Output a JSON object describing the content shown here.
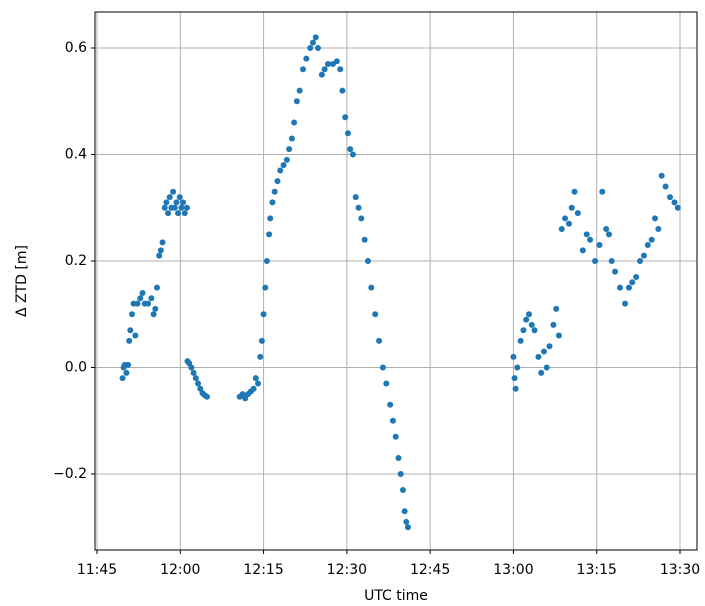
{
  "chart_data": {
    "type": "scatter",
    "xlabel": "UTC time",
    "ylabel": "Δ ZTD [m]",
    "xlim": [
      704.64,
      813.06
    ],
    "ylim": [
      -0.3427,
      0.6676
    ],
    "xticks": [
      {
        "value": 705,
        "label": "11:45"
      },
      {
        "value": 720,
        "label": "12:00"
      },
      {
        "value": 735,
        "label": "12:15"
      },
      {
        "value": 750,
        "label": "12:30"
      },
      {
        "value": 765,
        "label": "12:45"
      },
      {
        "value": 780,
        "label": "13:00"
      },
      {
        "value": 795,
        "label": "13:15"
      },
      {
        "value": 810,
        "label": "13:30"
      }
    ],
    "yticks": [
      {
        "value": -0.2,
        "label": "−0.2"
      },
      {
        "value": 0,
        "label": "0.0"
      },
      0.2,
      0.4,
      0.6
    ],
    "grid": true,
    "series": [
      {
        "color": "#1f77b4",
        "x": [
          709.6,
          709.8,
          710,
          710.3,
          710.6,
          710.8,
          711,
          711.3,
          711.6,
          711.9,
          712.3,
          712.8,
          713.2,
          713.6,
          714.2,
          714.8,
          715.2,
          715.5,
          715.8,
          716.2,
          716.5,
          716.8,
          717.2,
          717.5,
          717.8,
          718.1,
          718.4,
          718.7,
          719,
          719.3,
          719.6,
          719.9,
          720.2,
          720.5,
          720.8,
          721.2,
          721.3,
          721.6,
          722,
          722.4,
          722.8,
          723.2,
          723.6,
          724,
          724.4,
          724.8,
          730.7,
          731.2,
          731.7,
          732.2,
          732.7,
          733.2,
          733.6,
          734,
          734.4,
          734.7,
          735,
          735.3,
          735.6,
          736,
          736.2,
          736.6,
          737,
          737.5,
          738,
          738.6,
          739.2,
          739.6,
          740.1,
          740.5,
          741,
          741.5,
          742.1,
          742.7,
          743.4,
          743.9,
          744.4,
          744.8,
          745.5,
          746,
          746.6,
          747.5,
          748.2,
          748.8,
          749.2,
          749.7,
          750.2,
          750.6,
          751.1,
          751.6,
          752.1,
          752.6,
          753.2,
          753.8,
          754.4,
          755.1,
          755.8,
          756.5,
          757.1,
          757.8,
          758.3,
          758.8,
          759.3,
          759.7,
          760.1,
          760.4,
          760.7,
          761,
          780,
          780.2,
          780.4,
          780.7,
          781.3,
          781.8,
          782.3,
          782.8,
          783.3,
          783.8,
          784.5,
          785,
          785.5,
          786,
          786.5,
          787.2,
          787.7,
          788.2,
          788.7,
          789.3,
          790,
          790.5,
          791,
          791.6,
          792.5,
          793.2,
          793.8,
          794.7,
          795.5,
          796,
          796.7,
          797.2,
          797.7,
          798.3,
          799.2,
          800.1,
          800.8,
          801.4,
          802.1,
          802.8,
          803.5,
          804.2,
          804.9,
          805.5,
          806.1,
          806.7,
          807.4,
          808.2,
          809,
          809.6
        ],
        "values": [
          -0.02,
          0,
          0.005,
          -0.01,
          0.005,
          0.05,
          0.07,
          0.1,
          0.12,
          0.06,
          0.12,
          0.13,
          0.14,
          0.12,
          0.12,
          0.13,
          0.1,
          0.11,
          0.15,
          0.21,
          0.22,
          0.235,
          0.3,
          0.31,
          0.29,
          0.32,
          0.3,
          0.33,
          0.3,
          0.31,
          0.29,
          0.32,
          0.3,
          0.31,
          0.29,
          0.3,
          0.012,
          0.008,
          0,
          -0.01,
          -0.02,
          -0.03,
          -0.04,
          -0.048,
          -0.052,
          -0.055,
          -0.055,
          -0.05,
          -0.058,
          -0.05,
          -0.045,
          -0.04,
          -0.02,
          -0.03,
          0.02,
          0.05,
          0.1,
          0.15,
          0.2,
          0.25,
          0.28,
          0.31,
          0.33,
          0.35,
          0.37,
          0.38,
          0.39,
          0.41,
          0.43,
          0.46,
          0.5,
          0.52,
          0.56,
          0.58,
          0.6,
          0.61,
          0.62,
          0.6,
          0.55,
          0.56,
          0.57,
          0.57,
          0.575,
          0.56,
          0.52,
          0.47,
          0.44,
          0.41,
          0.4,
          0.32,
          0.3,
          0.28,
          0.24,
          0.2,
          0.15,
          0.1,
          0.05,
          0,
          -0.03,
          -0.07,
          -0.1,
          -0.13,
          -0.17,
          -0.2,
          -0.23,
          -0.27,
          -0.29,
          -0.3,
          0.02,
          -0.02,
          -0.04,
          0,
          0.05,
          0.07,
          0.09,
          0.1,
          0.08,
          0.07,
          0.02,
          -0.01,
          0.03,
          0,
          0.04,
          0.08,
          0.11,
          0.06,
          0.26,
          0.28,
          0.27,
          0.3,
          0.33,
          0.29,
          0.22,
          0.25,
          0.24,
          0.2,
          0.23,
          0.33,
          0.26,
          0.25,
          0.2,
          0.18,
          0.15,
          0.12,
          0.15,
          0.16,
          0.17,
          0.2,
          0.21,
          0.23,
          0.24,
          0.28,
          0.26,
          0.36,
          0.34,
          0.32,
          0.31,
          0.3
        ]
      }
    ]
  }
}
